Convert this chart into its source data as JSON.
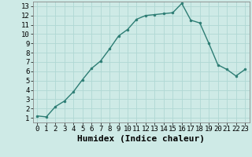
{
  "x": [
    0,
    1,
    2,
    3,
    4,
    5,
    6,
    7,
    8,
    9,
    10,
    11,
    12,
    13,
    14,
    15,
    16,
    17,
    18,
    19,
    20,
    21,
    22,
    23
  ],
  "y": [
    1.2,
    1.1,
    2.2,
    2.8,
    3.8,
    5.1,
    6.3,
    7.1,
    8.4,
    9.8,
    10.5,
    11.6,
    12.0,
    12.1,
    12.2,
    12.3,
    13.3,
    11.5,
    11.2,
    9.0,
    6.7,
    6.2,
    5.5,
    6.2
  ],
  "xlabel": "Humidex (Indice chaleur)",
  "xlim": [
    -0.5,
    23.5
  ],
  "ylim": [
    0.5,
    13.5
  ],
  "xticks": [
    0,
    1,
    2,
    3,
    4,
    5,
    6,
    7,
    8,
    9,
    10,
    11,
    12,
    13,
    14,
    15,
    16,
    17,
    18,
    19,
    20,
    21,
    22,
    23
  ],
  "yticks": [
    1,
    2,
    3,
    4,
    5,
    6,
    7,
    8,
    9,
    10,
    11,
    12,
    13
  ],
  "line_color": "#2d7d74",
  "marker_color": "#2d7d74",
  "bg_color": "#ceeae6",
  "grid_color": "#b0d8d4",
  "tick_fontsize": 6.5,
  "xlabel_fontsize": 8
}
